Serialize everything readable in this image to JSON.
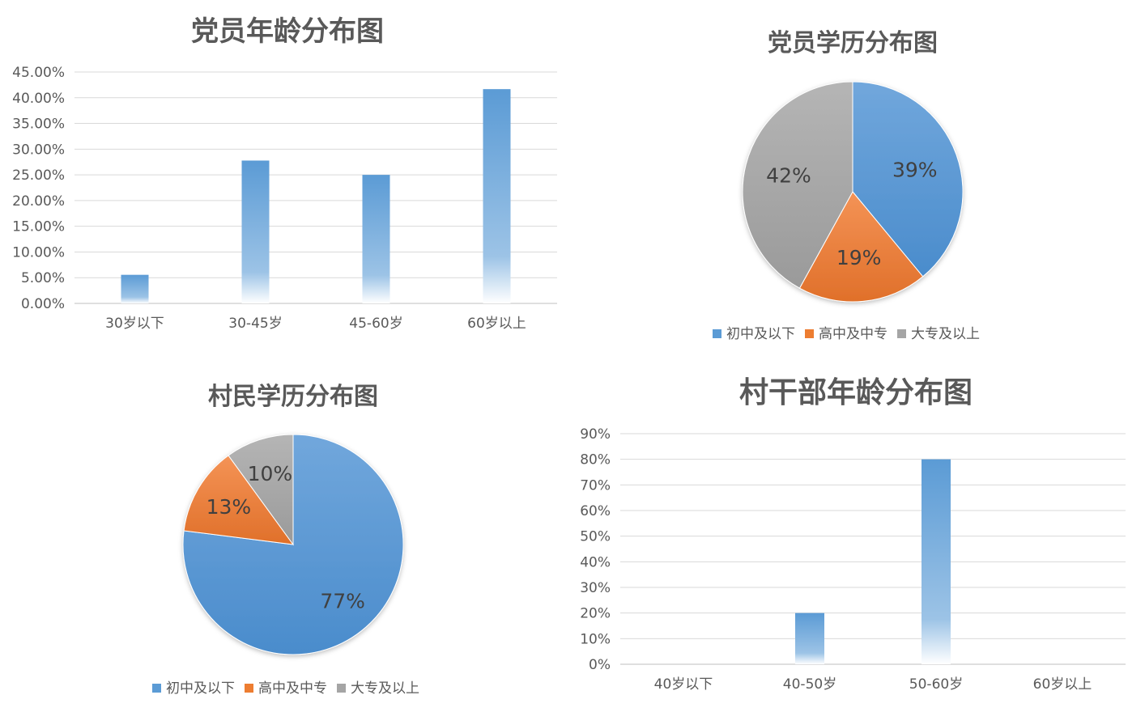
{
  "colors": {
    "blue": "#5b9bd5",
    "orange": "#ed7d31",
    "gray": "#a5a5a5",
    "text": "#595959"
  },
  "chart_data": [
    {
      "type": "bar",
      "title": "党员年龄分布图",
      "categories": [
        "30岁以下",
        "30-45岁",
        "45-60岁",
        "60岁以上"
      ],
      "values": [
        5.56,
        27.78,
        25.0,
        41.67
      ],
      "ylim": [
        0,
        45
      ],
      "yticks": [
        "0.00%",
        "5.00%",
        "10.00%",
        "15.00%",
        "20.00%",
        "25.00%",
        "30.00%",
        "35.00%",
        "40.00%",
        "45.00%"
      ],
      "grid": true,
      "legend": "none"
    },
    {
      "type": "pie",
      "title": "党员学历分布图",
      "labels": [
        "初中及以下",
        "高中及中专",
        "大专及以上"
      ],
      "values": [
        39,
        19,
        42
      ],
      "value_labels": [
        "39%",
        "19%",
        "42%"
      ],
      "colors": [
        "#5b9bd5",
        "#ed7d31",
        "#a5a5a5"
      ],
      "legend": "bottom"
    },
    {
      "type": "pie",
      "title": "村民学历分布图",
      "labels": [
        "初中及以下",
        "高中及中专",
        "大专及以上"
      ],
      "values": [
        77,
        13,
        10
      ],
      "value_labels": [
        "77%",
        "13%",
        "10%"
      ],
      "colors": [
        "#5b9bd5",
        "#ed7d31",
        "#a5a5a5"
      ],
      "legend": "bottom"
    },
    {
      "type": "bar",
      "title": "村干部年龄分布图",
      "categories": [
        "40岁以下",
        "40-50岁",
        "50-60岁",
        "60岁以上"
      ],
      "values": [
        0,
        20,
        80,
        0
      ],
      "ylim": [
        0,
        90
      ],
      "yticks": [
        "0%",
        "10%",
        "20%",
        "30%",
        "40%",
        "50%",
        "60%",
        "70%",
        "80%",
        "90%"
      ],
      "grid": true,
      "legend": "none"
    }
  ]
}
